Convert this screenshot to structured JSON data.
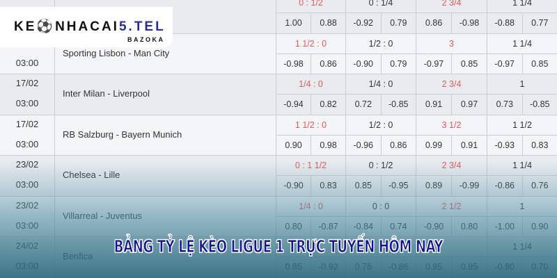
{
  "logo": {
    "brand_main": "KE",
    "brand_mid": "NHACAI",
    "brand_accent": "5.TEL",
    "sub": "BAZOKA"
  },
  "banner": "BẢNG TỶ LỆ KÈO LIGUE 1 TRỰC TUYẾN HÔM NAY",
  "colors": {
    "handicap_text": "#e05a5a",
    "banner_text": "#14148f",
    "overlay": "#28697d"
  },
  "rows": [
    {
      "date": "",
      "time": "",
      "match": "",
      "headers": [
        "0 : 1/2",
        "0 : 1/4",
        "2 3/4",
        "1 1/4"
      ],
      "odds": [
        "1.00",
        "0.88",
        "-0.92",
        "0.79",
        "0.86",
        "-0.98",
        "-0.88",
        "0.77"
      ]
    },
    {
      "date": "",
      "time": "03:00",
      "match": "Sporting Lisbon - Man City",
      "headers": [
        "1 1/2 : 0",
        "1/2 : 0",
        "3",
        "1 1/4"
      ],
      "odds": [
        "-0.98",
        "0.86",
        "-0.90",
        "0.79",
        "-0.97",
        "0.85",
        "-0.97",
        "0.85"
      ]
    },
    {
      "date": "17/02",
      "time": "03:00",
      "match": "Inter Milan - Liverpool",
      "headers": [
        "1/4 : 0",
        "1/4 : 0",
        "2 3/4",
        "1"
      ],
      "odds": [
        "-0.94",
        "0.82",
        "0.72",
        "-0.85",
        "0.91",
        "0.97",
        "0.73",
        "-0.85"
      ]
    },
    {
      "date": "17/02",
      "time": "03:00",
      "match": "RB Salzburg - Bayern Munich",
      "headers": [
        "1 1/2 : 0",
        "1/2 : 0",
        "3 1/2",
        "1 1/2"
      ],
      "odds": [
        "0.90",
        "0.98",
        "-0.96",
        "0.86",
        "0.99",
        "0.91",
        "-0.93",
        "0.83"
      ]
    },
    {
      "date": "23/02",
      "time": "03:00",
      "match": "Chelsea - Lille",
      "headers": [
        "0 : 1 1/2",
        "0 : 1/2",
        "2 3/4",
        "1 1/4"
      ],
      "odds": [
        "-0.90",
        "0.83",
        "0.85",
        "-0.95",
        "0.89",
        "-0.99",
        "-0.86",
        "0.76"
      ]
    },
    {
      "date": "23/02",
      "time": "03:00",
      "match": "Villarreal - Juventus",
      "headers": [
        "1/4 : 0",
        "0 : 0",
        "2 1/2",
        "1"
      ],
      "odds": [
        "0.80",
        "-0.87",
        "-0.84",
        "0.74",
        "-0.90",
        "0.80",
        "-1.00",
        "0.90"
      ]
    },
    {
      "date": "24/02",
      "time": "03:00",
      "match": "Benfica",
      "headers": [
        "",
        "",
        "",
        "1 1/4"
      ],
      "odds": [
        "0.85",
        "-0.92",
        "0.76",
        "-0.86",
        "0.95",
        "0.95",
        "-0.80",
        "0.70"
      ]
    }
  ]
}
